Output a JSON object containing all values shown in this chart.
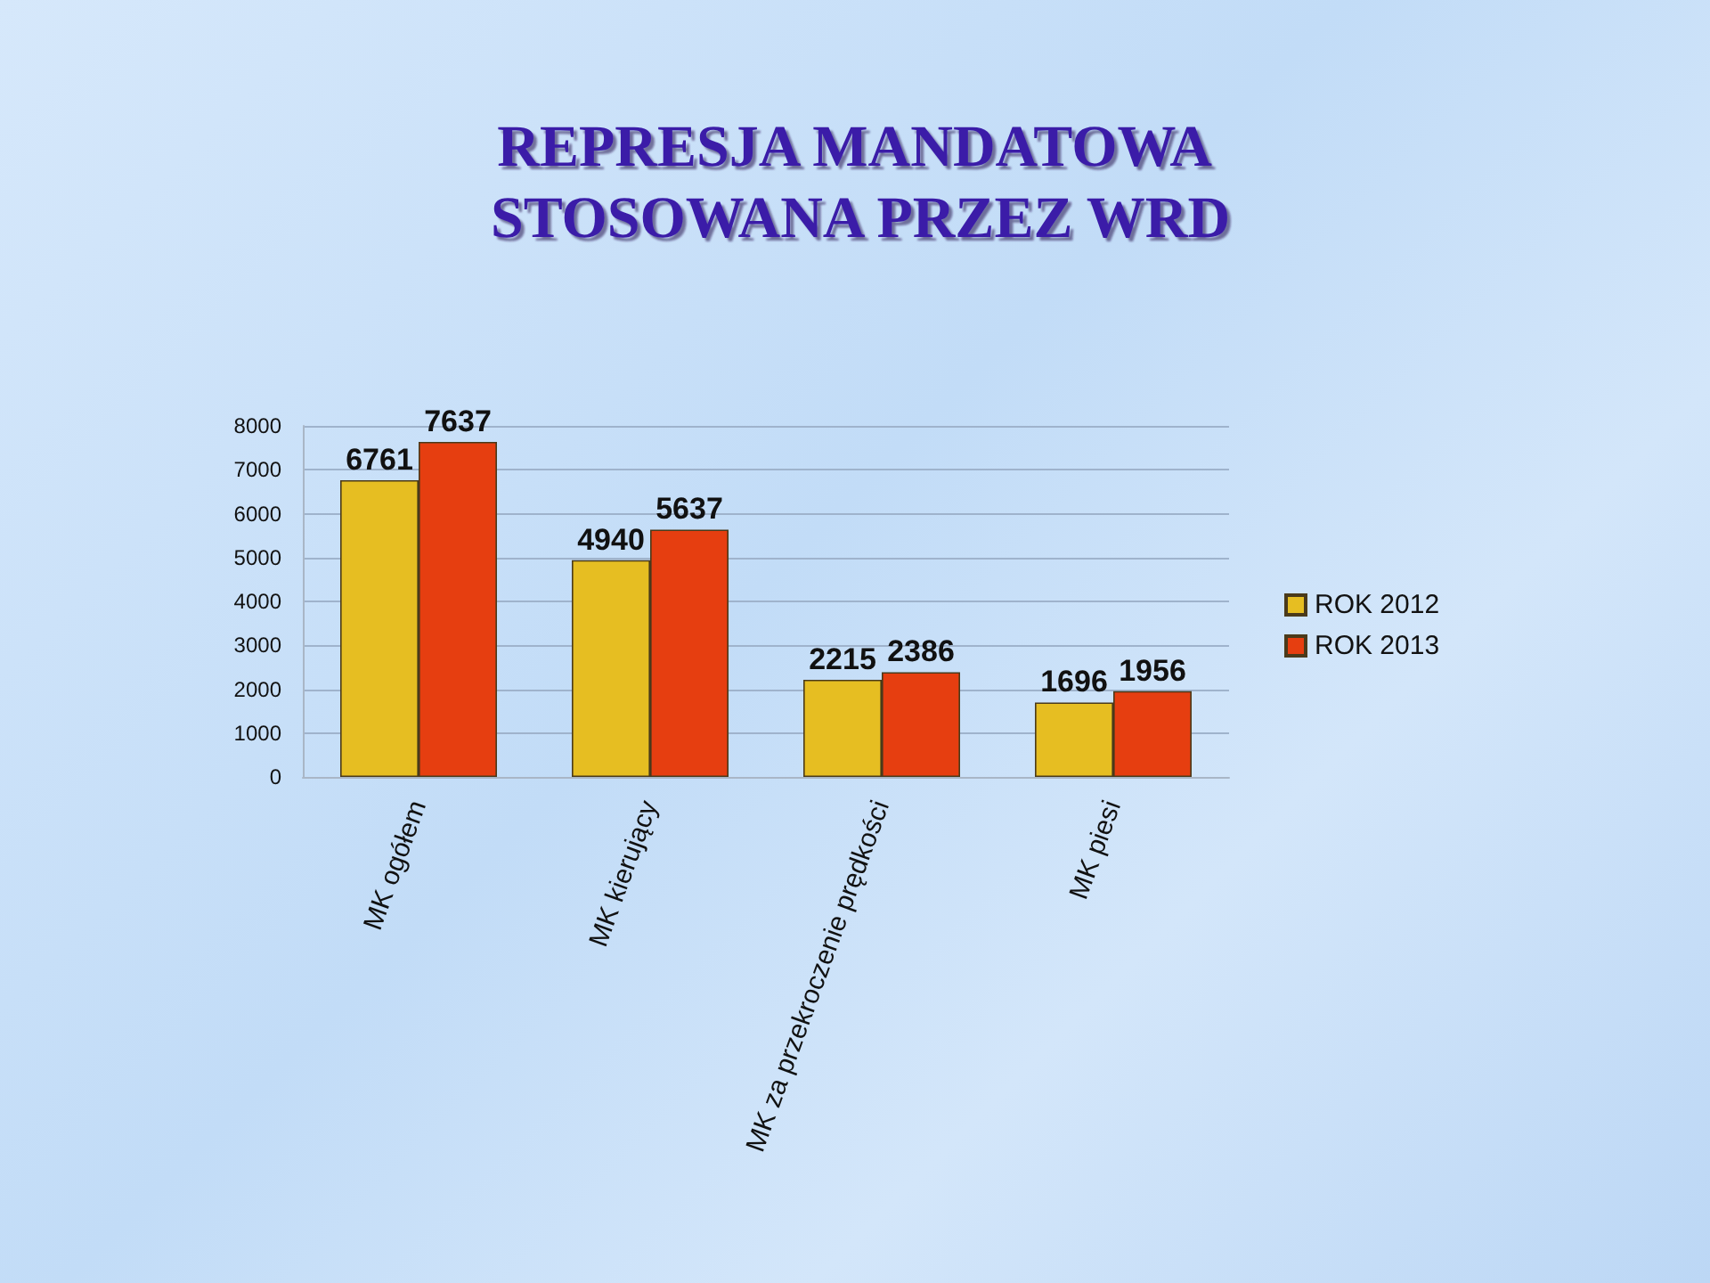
{
  "chart_data": {
    "type": "bar",
    "title": "REPRESJA MANDATOWA STOSOWANA PRZEZ WRD",
    "categories": [
      "MK ogółem",
      "MK kierujący",
      "MK za przekroczenie prędkości",
      "MK piesi"
    ],
    "series": [
      {
        "name": "ROK 2012",
        "color": "#e6be22",
        "values": [
          6761,
          4940,
          2215,
          1696
        ]
      },
      {
        "name": "ROK 2013",
        "color": "#e63e10",
        "values": [
          7637,
          5637,
          2386,
          1956
        ]
      }
    ],
    "ylim": [
      0,
      8000
    ],
    "yticks": [
      0,
      1000,
      2000,
      3000,
      4000,
      5000,
      6000,
      7000,
      8000
    ],
    "grid": "y",
    "legend": "right",
    "data_labels": true
  }
}
